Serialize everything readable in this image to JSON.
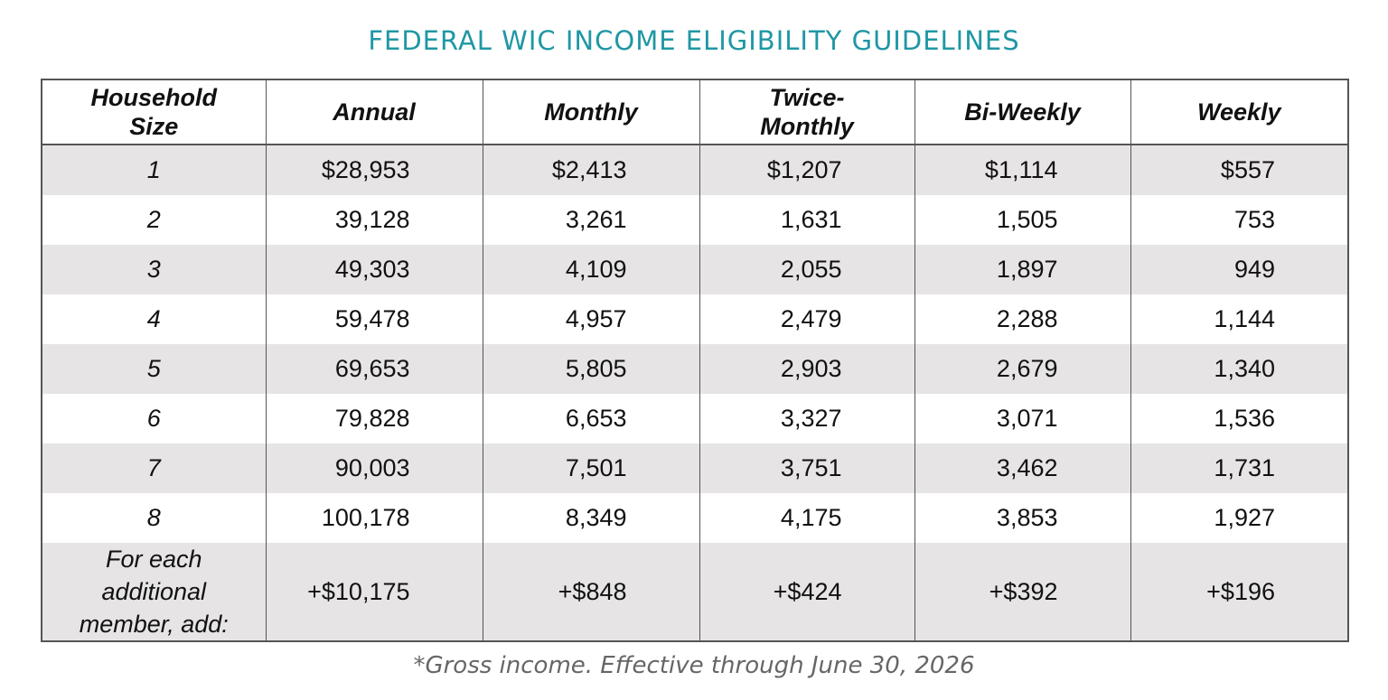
{
  "title": "FEDERAL WIC INCOME ELIGIBILITY GUIDELINES",
  "headers": {
    "household_size": "Household Size",
    "annual": "Annual",
    "monthly": "Monthly",
    "twice_monthly": "Twice-Monthly",
    "bi_weekly": "Bi-Weekly",
    "weekly": "Weekly"
  },
  "rows": [
    {
      "size": "1",
      "annual": "$28,953",
      "monthly": "$2,413",
      "twice_monthly": "$1,207",
      "bi_weekly": "$1,114",
      "weekly": "$557"
    },
    {
      "size": "2",
      "annual": "39,128",
      "monthly": "3,261",
      "twice_monthly": "1,631",
      "bi_weekly": "1,505",
      "weekly": "753"
    },
    {
      "size": "3",
      "annual": "49,303",
      "monthly": "4,109",
      "twice_monthly": "2,055",
      "bi_weekly": "1,897",
      "weekly": "949"
    },
    {
      "size": "4",
      "annual": "59,478",
      "monthly": "4,957",
      "twice_monthly": "2,479",
      "bi_weekly": "2,288",
      "weekly": "1,144"
    },
    {
      "size": "5",
      "annual": "69,653",
      "monthly": "5,805",
      "twice_monthly": "2,903",
      "bi_weekly": "2,679",
      "weekly": "1,340"
    },
    {
      "size": "6",
      "annual": "79,828",
      "monthly": "6,653",
      "twice_monthly": "3,327",
      "bi_weekly": "3,071",
      "weekly": "1,536"
    },
    {
      "size": "7",
      "annual": "90,003",
      "monthly": "7,501",
      "twice_monthly": "3,751",
      "bi_weekly": "3,462",
      "weekly": "1,731"
    },
    {
      "size": "8",
      "annual": "100,178",
      "monthly": "8,349",
      "twice_monthly": "4,175",
      "bi_weekly": "3,853",
      "weekly": "1,927"
    },
    {
      "size": "For each additional member, add:",
      "annual": "+$10,175",
      "monthly": "+$848",
      "twice_monthly": "+$424",
      "bi_weekly": "+$392",
      "weekly": "+$196"
    }
  ],
  "footnote": "*Gross income.  Effective through June 30, 2026",
  "colors": {
    "title": "#1f97a4",
    "row_shade": "#e6e4e5",
    "border": "#555555",
    "footnote": "#666666"
  }
}
